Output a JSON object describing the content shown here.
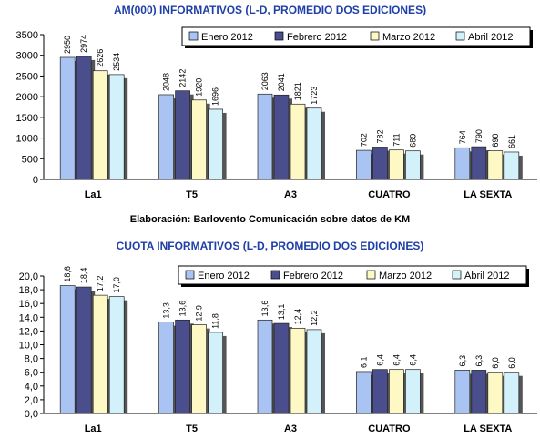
{
  "colors": {
    "title": "#1f3fa8",
    "enero": "#a9c4f2",
    "febrero": "#4a4e8c",
    "marzo": "#fdf8c4",
    "abril": "#d2f1fb"
  },
  "caption": "Elaboración: Barlovento Comunicación sobre datos de KM",
  "chart_data": [
    {
      "type": "bar",
      "title": "AM(000) INFORMATIVOS (L-D, PROMEDIO DOS EDICIONES)",
      "categories": [
        "La1",
        "T5",
        "A3",
        "CUATRO",
        "LA SEXTA"
      ],
      "series": [
        {
          "name": "Enero 2012",
          "values": [
            2950,
            2048,
            2063,
            702,
            764
          ],
          "labels": [
            "2950",
            "2048",
            "2063",
            "702",
            "764"
          ]
        },
        {
          "name": "Febrero 2012",
          "values": [
            2974,
            2142,
            2041,
            782,
            790
          ],
          "labels": [
            "2974",
            "2142",
            "2041",
            "782",
            "790"
          ]
        },
        {
          "name": "Marzo 2012",
          "values": [
            2626,
            1920,
            1821,
            711,
            690
          ],
          "labels": [
            "2626",
            "1920",
            "1821",
            "711",
            "690"
          ]
        },
        {
          "name": "Abril 2012",
          "values": [
            2534,
            1696,
            1723,
            689,
            661
          ],
          "labels": [
            "2534",
            "1696",
            "1723",
            "689",
            "661"
          ]
        }
      ],
      "ylim": [
        0,
        3500
      ],
      "yticks": [
        0,
        500,
        1000,
        1500,
        2000,
        2500,
        3000,
        3500
      ],
      "ytick_labels": [
        "0",
        "500",
        "1000",
        "1500",
        "2000",
        "2500",
        "3000",
        "3500"
      ],
      "legend": "top-right",
      "grid": false
    },
    {
      "type": "bar",
      "title": "CUOTA INFORMATIVOS (L-D, PROMEDIO DOS EDICIONES)",
      "categories": [
        "La1",
        "T5",
        "A3",
        "CUATRO",
        "LA SEXTA"
      ],
      "series": [
        {
          "name": "Enero 2012",
          "values": [
            18.6,
            13.3,
            13.6,
            6.1,
            6.3
          ],
          "labels": [
            "18,6",
            "13,3",
            "13,6",
            "6,1",
            "6,3"
          ]
        },
        {
          "name": "Febrero 2012",
          "values": [
            18.4,
            13.6,
            13.1,
            6.4,
            6.3
          ],
          "labels": [
            "18,4",
            "13,6",
            "13,1",
            "6,4",
            "6,3"
          ]
        },
        {
          "name": "Marzo 2012",
          "values": [
            17.2,
            12.9,
            12.4,
            6.4,
            6.0
          ],
          "labels": [
            "17,2",
            "12,9",
            "12,4",
            "6,4",
            "6,0"
          ]
        },
        {
          "name": "Abril 2012",
          "values": [
            17.0,
            11.8,
            12.2,
            6.4,
            6.0
          ],
          "labels": [
            "17,0",
            "11,8",
            "12,2",
            "6,4",
            "6,0"
          ]
        }
      ],
      "ylim": [
        0,
        20
      ],
      "yticks": [
        0,
        2,
        4,
        6,
        8,
        10,
        12,
        14,
        16,
        18,
        20
      ],
      "ytick_labels": [
        "0,0",
        "2,0",
        "4,0",
        "6,0",
        "8,0",
        "10,0",
        "12,0",
        "14,0",
        "16,0",
        "18,0",
        "20,0"
      ],
      "legend": "top-right",
      "grid": false
    }
  ]
}
